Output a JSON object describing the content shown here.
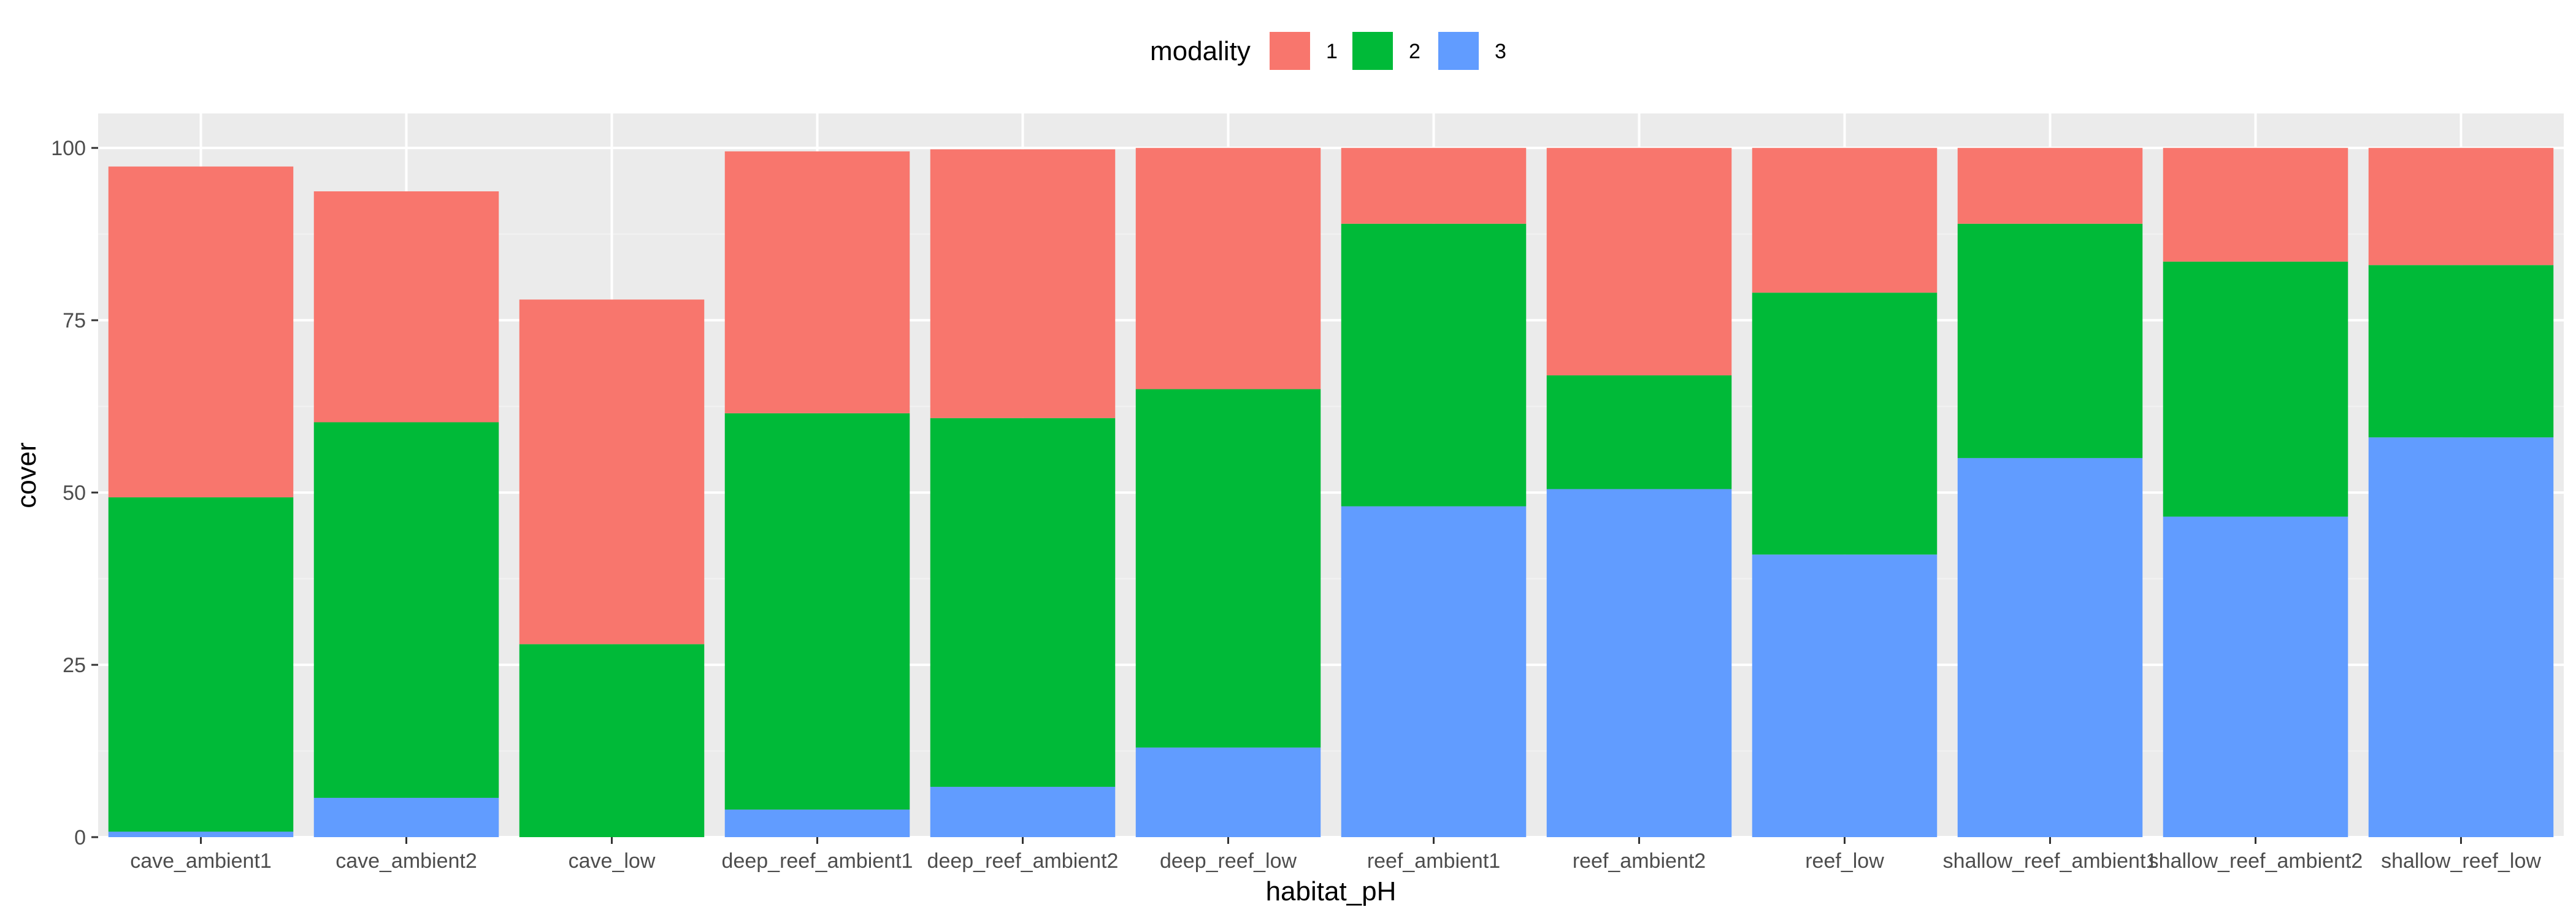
{
  "chart_data": {
    "type": "bar",
    "stacked": true,
    "xlabel": "habitat_pH",
    "ylabel": "cover",
    "ylim": [
      0,
      105
    ],
    "yticks": [
      0,
      25,
      50,
      75,
      100
    ],
    "ytick_labels": [
      "0",
      "25",
      "50",
      "75",
      "100"
    ],
    "grid": true,
    "legend": {
      "title": "modality",
      "position": "top"
    },
    "categories": [
      "cave_ambient1",
      "cave_ambient2",
      "cave_low",
      "deep_reef_ambient1",
      "deep_reef_ambient2",
      "deep_reef_low",
      "reef_ambient1",
      "reef_ambient2",
      "reef_low",
      "shallow_reef_ambient1",
      "shallow_reef_ambient2",
      "shallow_reef_low"
    ],
    "series": [
      {
        "name": "1",
        "color": "#F8766D",
        "values": [
          48.0,
          33.5,
          50.0,
          38.0,
          39.0,
          35.0,
          11.0,
          33.0,
          21.0,
          11.0,
          16.5,
          17.0
        ]
      },
      {
        "name": "2",
        "color": "#00BA38",
        "values": [
          48.5,
          54.5,
          28.0,
          57.5,
          53.5,
          52.0,
          41.0,
          16.5,
          38.0,
          34.0,
          37.0,
          25.0
        ]
      },
      {
        "name": "3",
        "color": "#619CFF",
        "values": [
          0.8,
          5.7,
          0.0,
          4.0,
          7.3,
          13.0,
          48.0,
          50.5,
          41.0,
          55.0,
          46.5,
          58.0
        ]
      }
    ],
    "stack_order": [
      "3",
      "2",
      "1"
    ]
  },
  "colors": {
    "panel_background": "#EBEBEB",
    "grid_major": "#FFFFFF",
    "grid_minor": "#F2F2F2"
  }
}
